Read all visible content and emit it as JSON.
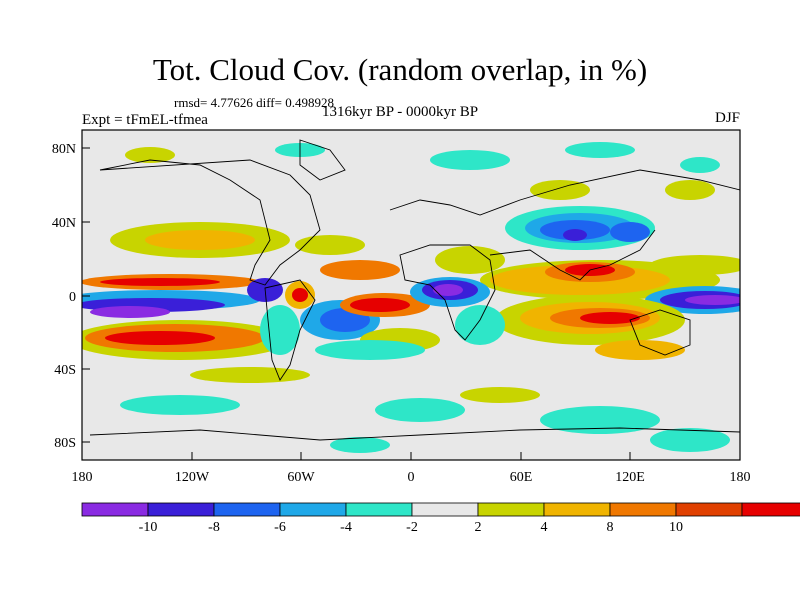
{
  "title": "Tot. Cloud Cov. (random overlap, in %)",
  "stats": "rmsd= 4.77626 diff= 0.498928",
  "experiment": "Expt = tFmEL-tfmea",
  "period": "1316kyr BP - 0000kyr BP",
  "season": "DJF",
  "map": {
    "lon_ticks": [
      "180",
      "120W",
      "60W",
      "0",
      "60E",
      "120E",
      "180"
    ],
    "lat_ticks": [
      "80N",
      "40N",
      "0",
      "40S",
      "80S"
    ],
    "background": "#e8e8e8"
  },
  "colorbar": {
    "labels": [
      "-10",
      "-8",
      "-6",
      "-4",
      "-2",
      "2",
      "4",
      "8",
      "10"
    ],
    "colors": [
      "#8a2be2",
      "#3a1fd8",
      "#1e64f0",
      "#1fa8e8",
      "#2ee6c8",
      "#e8e8e8",
      "#c8d400",
      "#f0b400",
      "#f07800",
      "#e04000",
      "#e60000"
    ]
  }
}
